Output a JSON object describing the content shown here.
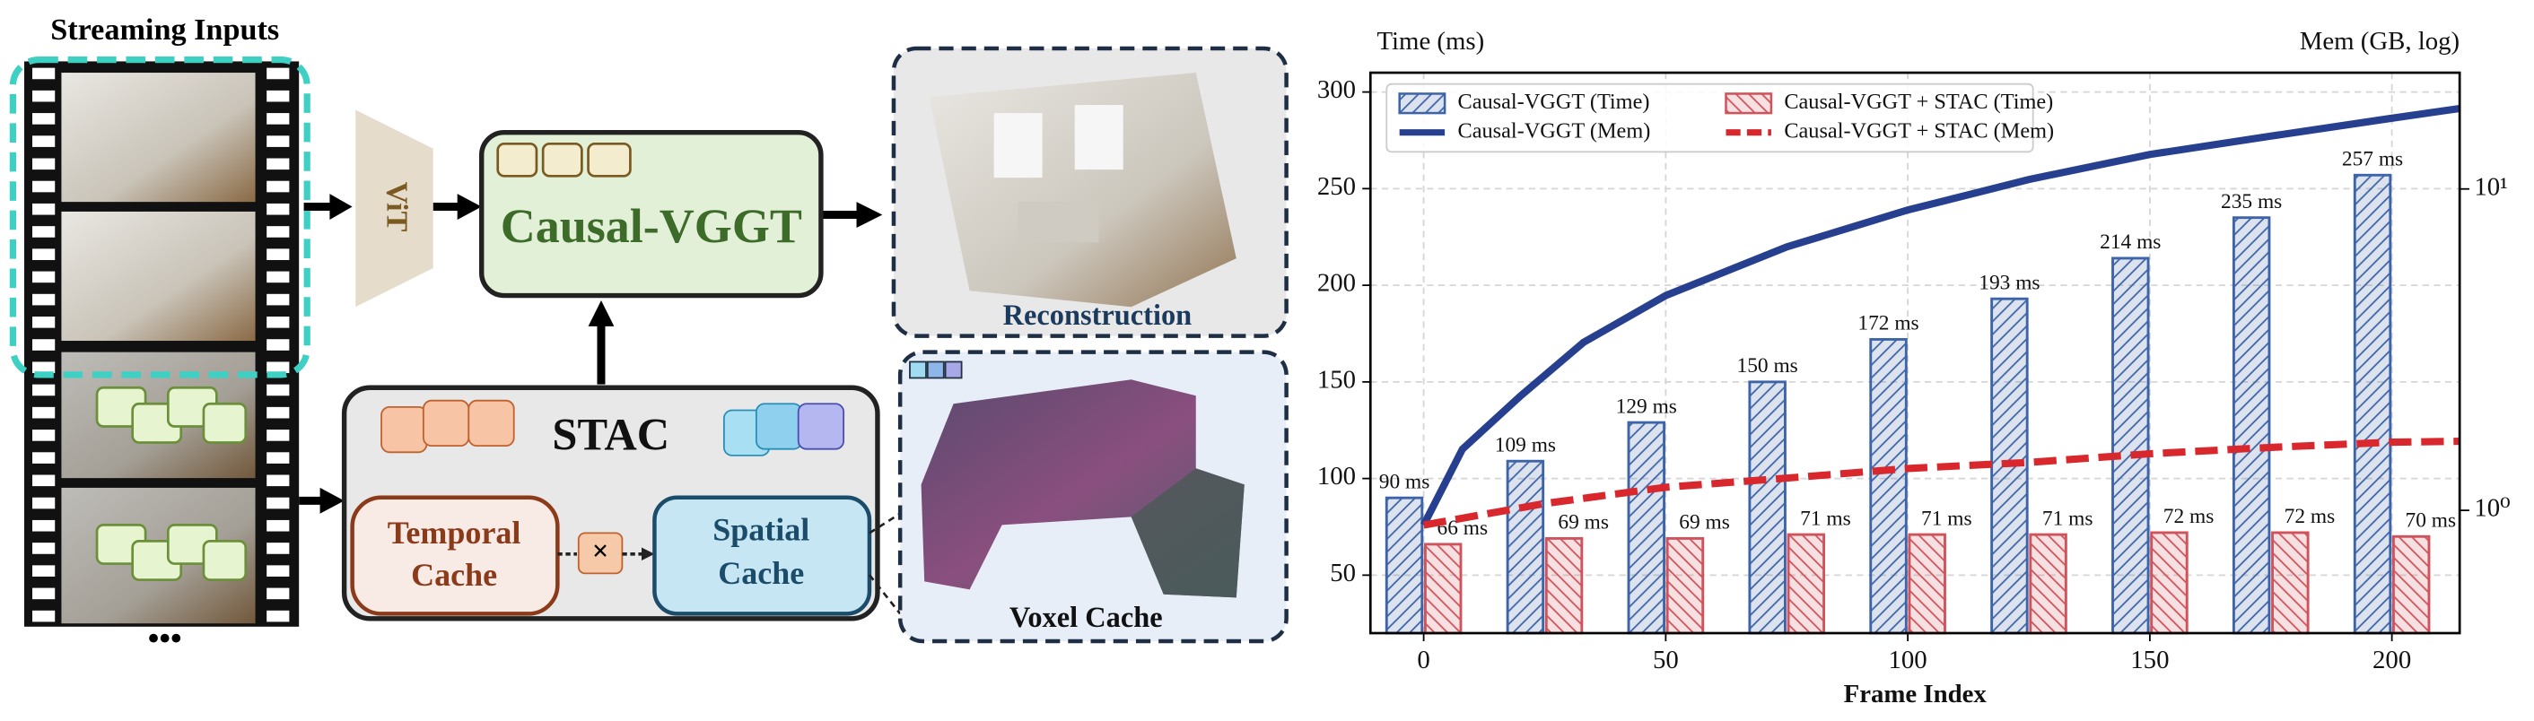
{
  "diagram": {
    "inputs_title": "Streaming Inputs",
    "more": "•••",
    "encoder": "ViT",
    "backbone": "Causal-VGGT",
    "module": "STAC",
    "temporal_cache": [
      "Temporal",
      "Cache"
    ],
    "operator": "×",
    "spatial_cache": [
      "Spatial",
      "Cache"
    ],
    "output": "Reconstruction",
    "voxel_cache": "Voxel Cache"
  },
  "chart_data": {
    "type": "combo",
    "xlabel": "Frame Index",
    "ylabel": "Time (ms)",
    "y2label": "Mem (GB, log)",
    "xlim": [
      -11,
      214
    ],
    "xticks": [
      0,
      50,
      100,
      150,
      200
    ],
    "ylim": [
      20,
      310
    ],
    "yticks": [
      50,
      100,
      150,
      200,
      250,
      300
    ],
    "y2lim": [
      0.415,
      23
    ],
    "y2scale": "log",
    "y2ticks": [
      {
        "value": 1,
        "label": "10⁰"
      },
      {
        "value": 10,
        "label": "10¹"
      }
    ],
    "grid": true,
    "legend": {
      "loc": "upper left",
      "ncol": 2
    },
    "series": [
      {
        "name": "Causal-VGGT (Time)",
        "type": "bar",
        "hatch": "/",
        "color": "#3d64a8",
        "x": [
          0,
          25,
          50,
          75,
          100,
          125,
          150,
          175,
          200
        ],
        "values": [
          90,
          109,
          129,
          150,
          172,
          193,
          214,
          235,
          257
        ],
        "value_labels": [
          "90 ms",
          "109 ms",
          "129 ms",
          "150 ms",
          "172 ms",
          "193 ms",
          "214 ms",
          "235 ms",
          "257 ms"
        ]
      },
      {
        "name": "Causal-VGGT + STAC (Time)",
        "type": "bar",
        "hatch": "\\",
        "color": "#d0525a",
        "x": [
          0,
          25,
          50,
          75,
          100,
          125,
          150,
          175,
          200
        ],
        "values": [
          66,
          69,
          69,
          71,
          71,
          71,
          72,
          72,
          70
        ],
        "value_labels": [
          "66 ms",
          "69 ms",
          "69 ms",
          "71 ms",
          "71 ms",
          "71 ms",
          "72 ms",
          "72 ms",
          "70 ms"
        ]
      },
      {
        "name": "Causal-VGGT (Mem)",
        "type": "line",
        "dash": "solid",
        "axis": "y2",
        "color": "#26408f",
        "x": [
          0,
          8,
          20,
          33,
          50,
          75,
          100,
          125,
          150,
          175,
          200,
          214
        ],
        "values": [
          0.9,
          1.55,
          2.27,
          3.33,
          4.66,
          6.6,
          8.6,
          10.7,
          12.8,
          14.6,
          16.6,
          17.8
        ]
      },
      {
        "name": "Causal-VGGT + STAC (Mem)",
        "type": "line",
        "dash": "dashed",
        "axis": "y2",
        "color": "#d8282e",
        "x": [
          0,
          25,
          50,
          75,
          100,
          125,
          150,
          175,
          200,
          214
        ],
        "values": [
          0.9,
          1.05,
          1.18,
          1.26,
          1.35,
          1.41,
          1.5,
          1.57,
          1.63,
          1.64
        ]
      }
    ]
  }
}
